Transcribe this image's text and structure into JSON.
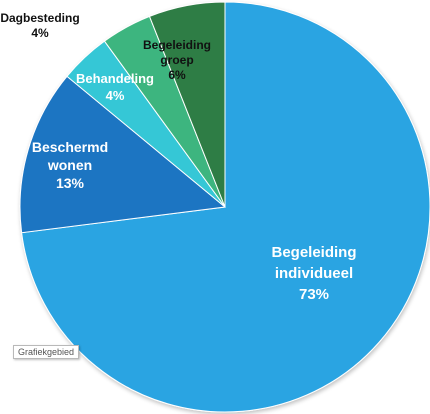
{
  "chart_data": {
    "type": "pie",
    "title": "",
    "start": "top, clockwise",
    "slices": [
      {
        "label_lines": [
          "Begeleiding",
          "individueel"
        ],
        "value": 73,
        "value_label": "73%",
        "color": "#2aa4e2",
        "label_color": "#ffffff"
      },
      {
        "label_lines": [
          "Beschermd",
          "wonen"
        ],
        "value": 13,
        "value_label": "13%",
        "color": "#1f74c2",
        "label_color": "#ffffff"
      },
      {
        "label_lines": [
          "Behandeling"
        ],
        "value": 4,
        "value_label": "4%",
        "color": "#34c7d6",
        "label_color": "#ffffff"
      },
      {
        "label_lines": [
          "Dagbesteding"
        ],
        "value": 4,
        "value_label": "4%",
        "color": "#3eb57f",
        "label_color": "#111111"
      },
      {
        "label_lines": [
          "Begeleiding",
          "groep"
        ],
        "value": 6,
        "value_label": "6%",
        "color": "#2f7d45",
        "label_color": "#111111"
      }
    ]
  },
  "tooltip": {
    "text": "Grafiekgebied"
  }
}
